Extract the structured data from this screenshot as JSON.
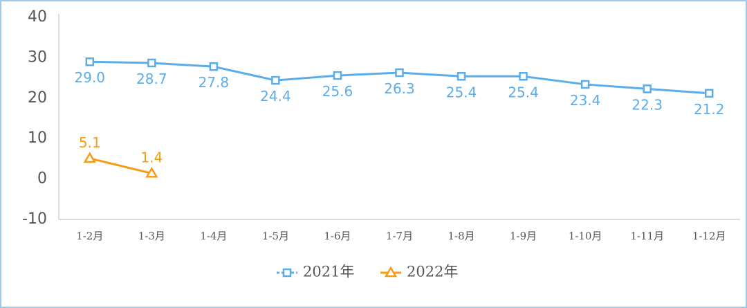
{
  "chart_data": {
    "type": "line",
    "categories": [
      "1-2月",
      "1-3月",
      "1-4月",
      "1-5月",
      "1-6月",
      "1-7月",
      "1-8月",
      "1-9月",
      "1-10月",
      "1-11月",
      "1-12月"
    ],
    "series": [
      {
        "name": "2021年",
        "color": "#5badea",
        "marker": "square",
        "values": [
          29.0,
          28.7,
          27.8,
          24.4,
          25.6,
          26.3,
          25.4,
          25.4,
          23.4,
          22.3,
          21.2
        ],
        "value_labels": [
          "29.0",
          "28.7",
          "27.8",
          "24.4",
          "25.6",
          "26.3",
          "25.4",
          "25.4",
          "23.4",
          "22.3",
          "21.2"
        ]
      },
      {
        "name": "2022年",
        "color": "#f59c12",
        "marker": "triangle",
        "values": [
          5.1,
          1.4,
          null,
          null,
          null,
          null,
          null,
          null,
          null,
          null,
          null
        ],
        "value_labels": [
          "5.1",
          "1.4",
          null,
          null,
          null,
          null,
          null,
          null,
          null,
          null,
          null
        ]
      }
    ],
    "ylim": [
      -10,
      40
    ],
    "yticks": [
      40,
      30,
      20,
      10,
      0,
      -10
    ],
    "grid": false,
    "legend": "bottom"
  }
}
